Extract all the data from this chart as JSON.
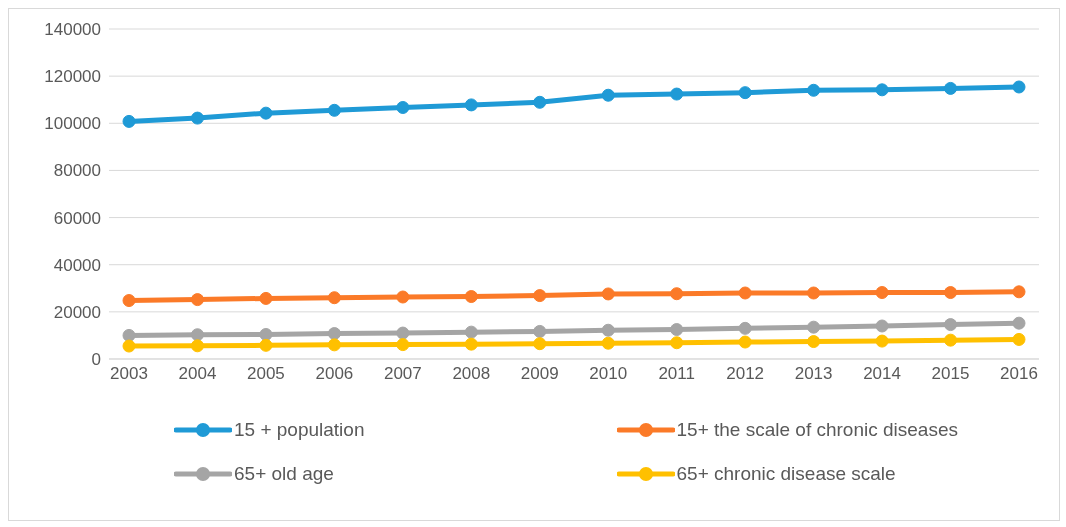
{
  "chart_data": {
    "type": "line",
    "categories": [
      "2003",
      "2004",
      "2005",
      "2006",
      "2007",
      "2008",
      "2009",
      "2010",
      "2011",
      "2012",
      "2013",
      "2014",
      "2015",
      "2016"
    ],
    "series": [
      {
        "name": "15 + population",
        "color": "#1f9ad6",
        "values": [
          100800,
          102200,
          104300,
          105500,
          106700,
          107800,
          108900,
          111900,
          112400,
          113000,
          114000,
          114200,
          114800,
          115400
        ]
      },
      {
        "name": "15+ the scale of chronic diseases",
        "color": "#fb7a28",
        "values": [
          24800,
          25200,
          25700,
          26000,
          26300,
          26500,
          26900,
          27600,
          27700,
          28000,
          28000,
          28200,
          28200,
          28500
        ]
      },
      {
        "name": "65+ old age",
        "color": "#a5a5a5",
        "values": [
          10000,
          10300,
          10400,
          10800,
          11000,
          11400,
          11700,
          12200,
          12500,
          13000,
          13500,
          14000,
          14600,
          15200
        ]
      },
      {
        "name": "65+ chronic disease scale",
        "color": "#ffc000",
        "values": [
          5500,
          5600,
          5800,
          6000,
          6100,
          6300,
          6500,
          6700,
          6900,
          7200,
          7400,
          7600,
          8000,
          8300
        ]
      }
    ],
    "ylim": [
      0,
      140000
    ],
    "yticks": [
      0,
      20000,
      40000,
      60000,
      80000,
      100000,
      120000,
      140000
    ],
    "grid": "y",
    "legend": "bottom",
    "marker": "circle",
    "line_style": "solid"
  }
}
